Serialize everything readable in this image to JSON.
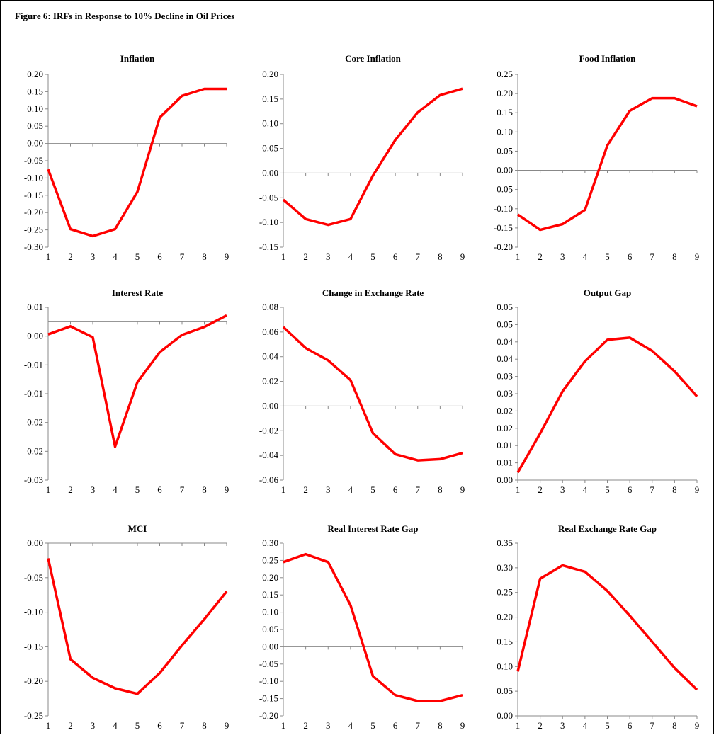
{
  "figure_title": "Figure 6: IRFs in Response to 10% Decline in Oil Prices",
  "colors": {
    "series": "#ff0000",
    "axis": "#888888"
  },
  "chart_data": [
    {
      "type": "line",
      "title": "Inflation",
      "x": [
        1,
        2,
        3,
        4,
        5,
        6,
        7,
        8,
        9
      ],
      "yticks": [
        "0.20",
        "0.15",
        "0.10",
        "0.05",
        "0.00",
        "-0.05",
        "-0.10",
        "-0.15",
        "-0.20",
        "-0.25",
        "-0.30"
      ],
      "ylim": [
        -0.3,
        0.2
      ],
      "series": [
        {
          "values": [
            -0.075,
            -0.248,
            -0.268,
            -0.248,
            -0.14,
            0.075,
            0.138,
            0.158,
            0.158
          ]
        }
      ]
    },
    {
      "type": "line",
      "title": "Core Inflation",
      "x": [
        1,
        2,
        3,
        4,
        5,
        6,
        7,
        8,
        9
      ],
      "yticks": [
        "0.20",
        "0.15",
        "0.10",
        "0.05",
        "0.00",
        "-0.05",
        "-0.10",
        "-0.15"
      ],
      "ylim": [
        -0.15,
        0.2
      ],
      "series": [
        {
          "values": [
            -0.054,
            -0.093,
            -0.105,
            -0.093,
            -0.005,
            0.067,
            0.123,
            0.158,
            0.171
          ]
        }
      ]
    },
    {
      "type": "line",
      "title": "Food Inflation",
      "x": [
        1,
        2,
        3,
        4,
        5,
        6,
        7,
        8,
        9
      ],
      "yticks": [
        "0.25",
        "0.20",
        "0.15",
        "0.10",
        "0.05",
        "0.00",
        "-0.05",
        "-0.10",
        "-0.15",
        "-0.20"
      ],
      "ylim": [
        -0.2,
        0.25
      ],
      "series": [
        {
          "values": [
            -0.115,
            -0.155,
            -0.14,
            -0.103,
            0.065,
            0.155,
            0.188,
            0.188,
            0.167
          ]
        }
      ]
    },
    {
      "type": "line",
      "title": "Interest Rate",
      "x": [
        1,
        2,
        3,
        4,
        5,
        6,
        7,
        8,
        9
      ],
      "yticks": [
        "0.01",
        "0.00",
        "-0.01",
        "-0.01",
        "-0.02",
        "-0.02",
        "-0.03"
      ],
      "ylim": [
        -0.0275,
        0.0025
      ],
      "series": [
        {
          "values": [
            -0.0022,
            -0.0008,
            -0.0027,
            -0.0217,
            -0.0105,
            -0.0053,
            -0.0023,
            -0.0009,
            0.0011
          ]
        }
      ]
    },
    {
      "type": "line",
      "title": "Change in Exchange Rate",
      "x": [
        1,
        2,
        3,
        4,
        5,
        6,
        7,
        8,
        9
      ],
      "yticks": [
        "0.08",
        "0.06",
        "0.04",
        "0.02",
        "0.00",
        "-0.02",
        "-0.04",
        "-0.06"
      ],
      "ylim": [
        -0.06,
        0.08
      ],
      "series": [
        {
          "values": [
            0.064,
            0.047,
            0.037,
            0.021,
            -0.022,
            -0.039,
            -0.044,
            -0.043,
            -0.038
          ]
        }
      ]
    },
    {
      "type": "line",
      "title": "Output Gap",
      "x": [
        1,
        2,
        3,
        4,
        5,
        6,
        7,
        8,
        9
      ],
      "yticks": [
        "0.05",
        "0.05",
        "0.04",
        "0.04",
        "0.03",
        "0.03",
        "0.02",
        "0.02",
        "0.01",
        "0.01",
        "0.00"
      ],
      "ylim": [
        0.0,
        0.05
      ],
      "series": [
        {
          "values": [
            0.0022,
            0.0135,
            0.0257,
            0.0344,
            0.0406,
            0.0412,
            0.0374,
            0.0315,
            0.0242
          ]
        }
      ]
    },
    {
      "type": "line",
      "title": "MCI",
      "x": [
        1,
        2,
        3,
        4,
        5,
        6,
        7,
        8,
        9
      ],
      "yticks": [
        "0.00",
        "-0.05",
        "-0.10",
        "-0.15",
        "-0.20",
        "-0.25"
      ],
      "ylim": [
        -0.25,
        0.0
      ],
      "series": [
        {
          "values": [
            -0.022,
            -0.168,
            -0.195,
            -0.21,
            -0.218,
            -0.188,
            -0.148,
            -0.11,
            -0.07
          ]
        }
      ]
    },
    {
      "type": "line",
      "title": "Real Interest Rate Gap",
      "x": [
        1,
        2,
        3,
        4,
        5,
        6,
        7,
        8,
        9
      ],
      "yticks": [
        "0.30",
        "0.25",
        "0.20",
        "0.15",
        "0.10",
        "0.05",
        "0.00",
        "-0.05",
        "-0.10",
        "-0.15",
        "-0.20"
      ],
      "ylim": [
        -0.2,
        0.3
      ],
      "series": [
        {
          "values": [
            0.245,
            0.268,
            0.245,
            0.12,
            -0.085,
            -0.14,
            -0.157,
            -0.157,
            -0.14
          ]
        }
      ]
    },
    {
      "type": "line",
      "title": "Real Exchange Rate Gap",
      "x": [
        1,
        2,
        3,
        4,
        5,
        6,
        7,
        8,
        9
      ],
      "yticks": [
        "0.35",
        "0.30",
        "0.25",
        "0.20",
        "0.15",
        "0.10",
        "0.05",
        "0.00"
      ],
      "ylim": [
        0.0,
        0.35
      ],
      "series": [
        {
          "values": [
            0.09,
            0.278,
            0.305,
            0.292,
            0.253,
            0.203,
            0.15,
            0.097,
            0.053
          ]
        }
      ]
    }
  ]
}
